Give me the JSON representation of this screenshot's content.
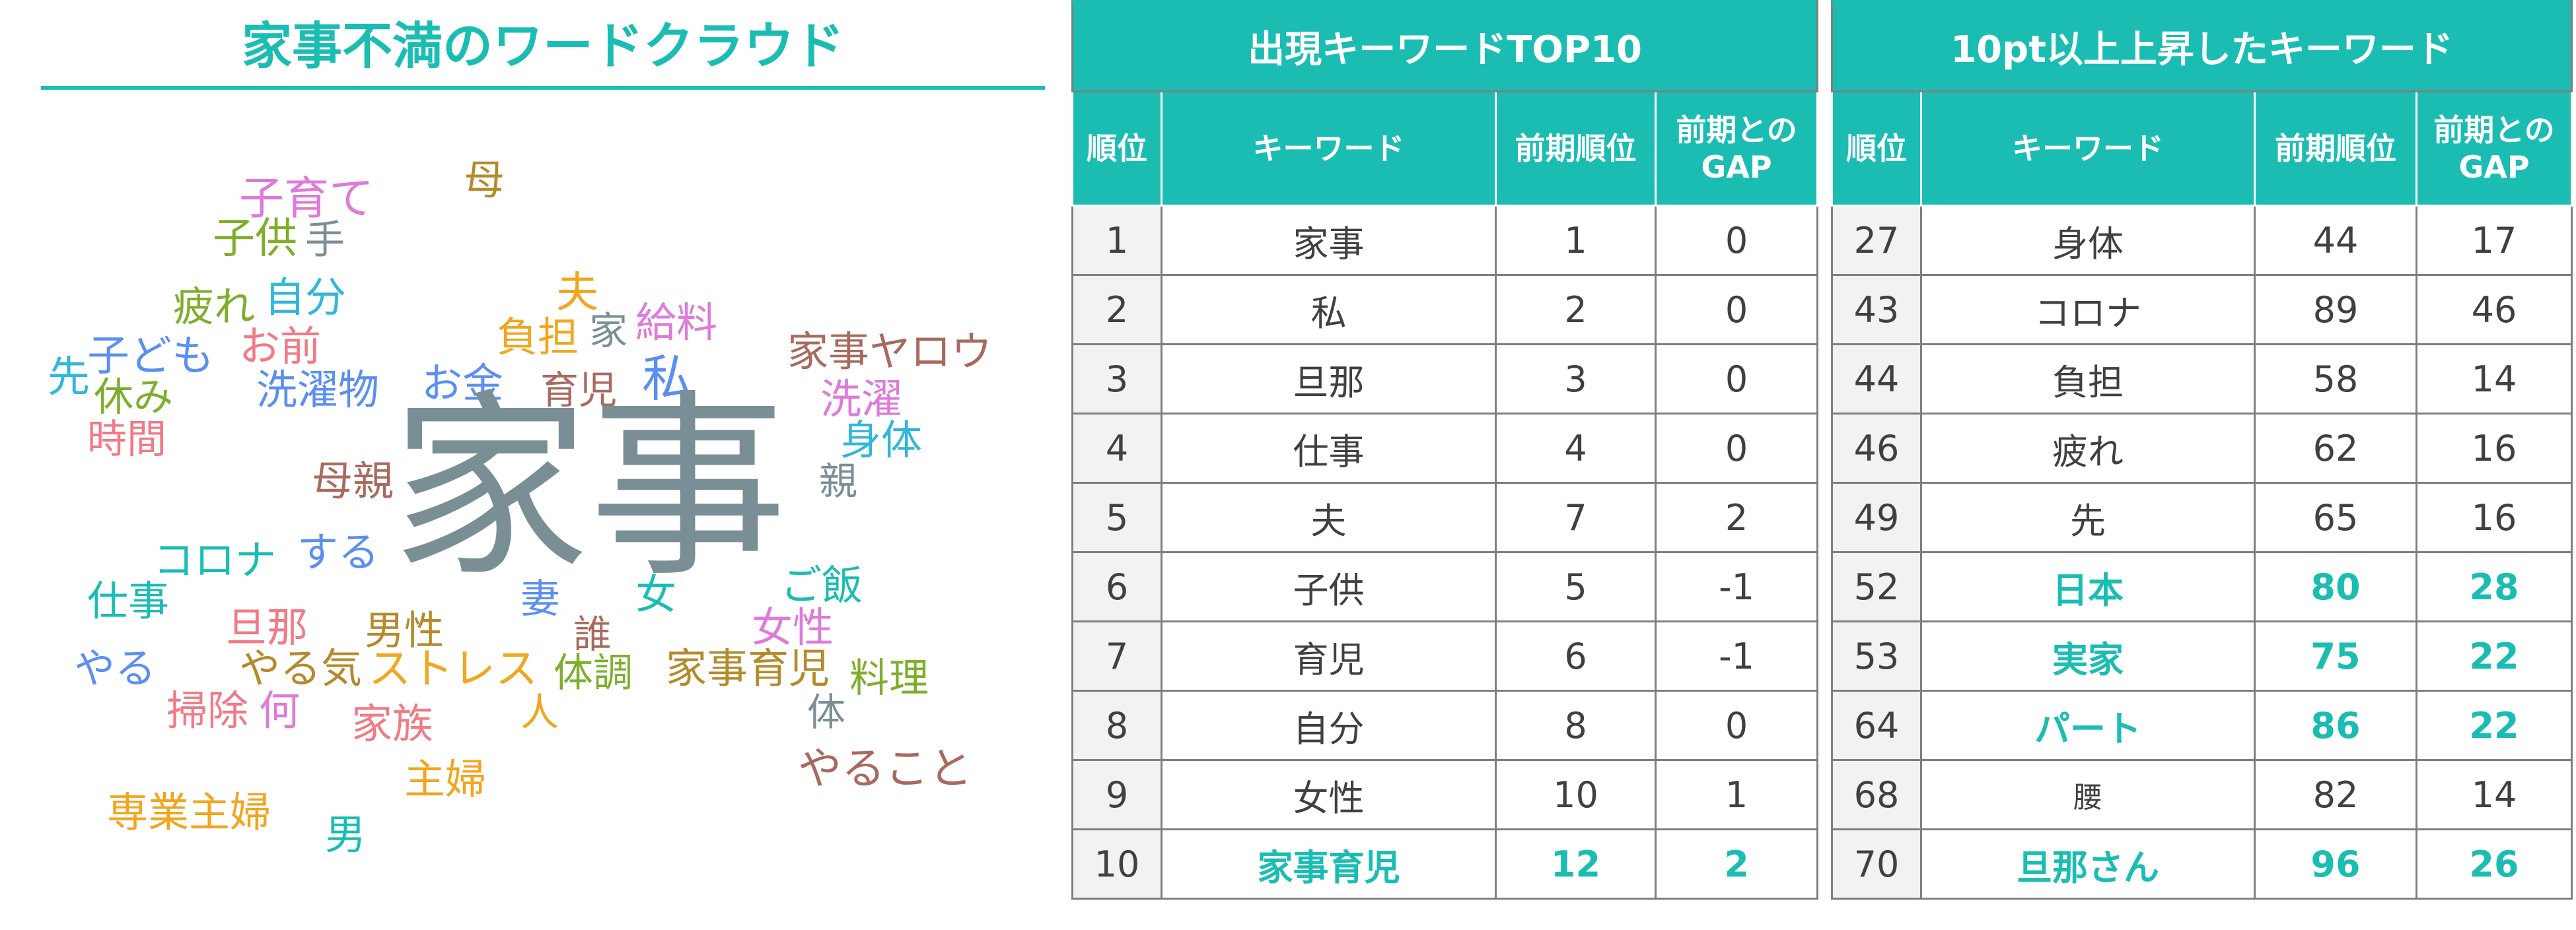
{
  "wordcloud": {
    "title": "家事不満のワードクラウド",
    "words": [
      {
        "text": "母",
        "color": "#b48a2c"
      },
      {
        "text": "子育て",
        "color": "#de7ad9"
      },
      {
        "text": "子供",
        "color": "#7fae2c"
      },
      {
        "text": "手",
        "color": "#7a8f95"
      },
      {
        "text": "疲れ",
        "color": "#7fae2c"
      },
      {
        "text": "自分",
        "color": "#32b6d9"
      },
      {
        "text": "夫",
        "color": "#f2a51e"
      },
      {
        "text": "負担",
        "color": "#f2a51e"
      },
      {
        "text": "家",
        "color": "#7a8f95"
      },
      {
        "text": "給料",
        "color": "#de7ad9"
      },
      {
        "text": "先",
        "color": "#32b6d9"
      },
      {
        "text": "子ども",
        "color": "#5b8ff0"
      },
      {
        "text": "お前",
        "color": "#f07a86"
      },
      {
        "text": "休み",
        "color": "#7fae2c"
      },
      {
        "text": "洗濯物",
        "color": "#5b8ff0"
      },
      {
        "text": "お金",
        "color": "#5b8ff0"
      },
      {
        "text": "育児",
        "color": "#a86a5e"
      },
      {
        "text": "私",
        "color": "#5b8ff0"
      },
      {
        "text": "家事ヤロウ",
        "color": "#a86a5e"
      },
      {
        "text": "洗濯",
        "color": "#de7ad9"
      },
      {
        "text": "時間",
        "color": "#f07a86"
      },
      {
        "text": "身体",
        "color": "#32b6d9"
      },
      {
        "text": "母親",
        "color": "#a86a5e"
      },
      {
        "text": "家事",
        "color": "#7a8f95"
      },
      {
        "text": "親",
        "color": "#7a8f95"
      },
      {
        "text": "コロナ",
        "color": "#1bbdb3"
      },
      {
        "text": "する",
        "color": "#5b8ff0"
      },
      {
        "text": "ご飯",
        "color": "#1bbdb3"
      },
      {
        "text": "仕事",
        "color": "#1bbdb3"
      },
      {
        "text": "妻",
        "color": "#5b8ff0"
      },
      {
        "text": "女",
        "color": "#1bbdb3"
      },
      {
        "text": "旦那",
        "color": "#f07a86"
      },
      {
        "text": "男性",
        "color": "#b48a2c"
      },
      {
        "text": "誰",
        "color": "#a86a5e"
      },
      {
        "text": "女性",
        "color": "#de7ad9"
      },
      {
        "text": "やる",
        "color": "#5b8ff0"
      },
      {
        "text": "やる気",
        "color": "#b48a2c"
      },
      {
        "text": "ストレス",
        "color": "#f2a51e"
      },
      {
        "text": "体調",
        "color": "#7fae2c"
      },
      {
        "text": "家事育児",
        "color": "#b48a2c"
      },
      {
        "text": "料理",
        "color": "#7fae2c"
      },
      {
        "text": "掃除",
        "color": "#f07a86"
      },
      {
        "text": "何",
        "color": "#de7ad9"
      },
      {
        "text": "人",
        "color": "#f2a51e"
      },
      {
        "text": "体",
        "color": "#7a8f95"
      },
      {
        "text": "家族",
        "color": "#f07a86"
      },
      {
        "text": "主婦",
        "color": "#f2a51e"
      },
      {
        "text": "やること",
        "color": "#a86a5e"
      },
      {
        "text": "専業主婦",
        "color": "#f2a51e"
      },
      {
        "text": "男",
        "color": "#1bbdb3"
      }
    ]
  },
  "top10": {
    "title": "出現キーワードTOP10",
    "headers": {
      "rank": "順位",
      "keyword": "キーワード",
      "prev": "前期順位",
      "gap1": "前期との",
      "gap2": "GAP"
    },
    "rows": [
      {
        "rank": "1",
        "keyword": "家事",
        "prev": "1",
        "gap": "0",
        "hl": false
      },
      {
        "rank": "2",
        "keyword": "私",
        "prev": "2",
        "gap": "0",
        "hl": false
      },
      {
        "rank": "3",
        "keyword": "旦那",
        "prev": "3",
        "gap": "0",
        "hl": false
      },
      {
        "rank": "4",
        "keyword": "仕事",
        "prev": "4",
        "gap": "0",
        "hl": false
      },
      {
        "rank": "5",
        "keyword": "夫",
        "prev": "7",
        "gap": "2",
        "hl": false
      },
      {
        "rank": "6",
        "keyword": "子供",
        "prev": "5",
        "gap": "-1",
        "hl": false
      },
      {
        "rank": "7",
        "keyword": "育児",
        "prev": "6",
        "gap": "-1",
        "hl": false
      },
      {
        "rank": "8",
        "keyword": "自分",
        "prev": "8",
        "gap": "0",
        "hl": false
      },
      {
        "rank": "9",
        "keyword": "女性",
        "prev": "10",
        "gap": "1",
        "hl": false
      },
      {
        "rank": "10",
        "keyword": "家事育児",
        "prev": "12",
        "gap": "2",
        "hl": true
      }
    ]
  },
  "rising": {
    "title": "10pt以上上昇したキーワード",
    "headers": {
      "rank": "順位",
      "keyword": "キーワード",
      "prev": "前期順位",
      "gap1": "前期との",
      "gap2": "GAP"
    },
    "rows": [
      {
        "rank": "27",
        "keyword": "身体",
        "prev": "44",
        "gap": "17",
        "hl": false
      },
      {
        "rank": "43",
        "keyword": "コロナ",
        "prev": "89",
        "gap": "46",
        "hl": false
      },
      {
        "rank": "44",
        "keyword": "負担",
        "prev": "58",
        "gap": "14",
        "hl": false
      },
      {
        "rank": "46",
        "keyword": "疲れ",
        "prev": "62",
        "gap": "16",
        "hl": false
      },
      {
        "rank": "49",
        "keyword": "先",
        "prev": "65",
        "gap": "16",
        "hl": false
      },
      {
        "rank": "52",
        "keyword": "日本",
        "prev": "80",
        "gap": "28",
        "hl": true
      },
      {
        "rank": "53",
        "keyword": "実家",
        "prev": "75",
        "gap": "22",
        "hl": true
      },
      {
        "rank": "64",
        "keyword": "パート",
        "prev": "86",
        "gap": "22",
        "hl": true
      },
      {
        "rank": "68",
        "keyword": "腰",
        "prev": "82",
        "gap": "14",
        "hl": false
      },
      {
        "rank": "70",
        "keyword": "旦那さん",
        "prev": "96",
        "gap": "26",
        "hl": true
      }
    ]
  }
}
